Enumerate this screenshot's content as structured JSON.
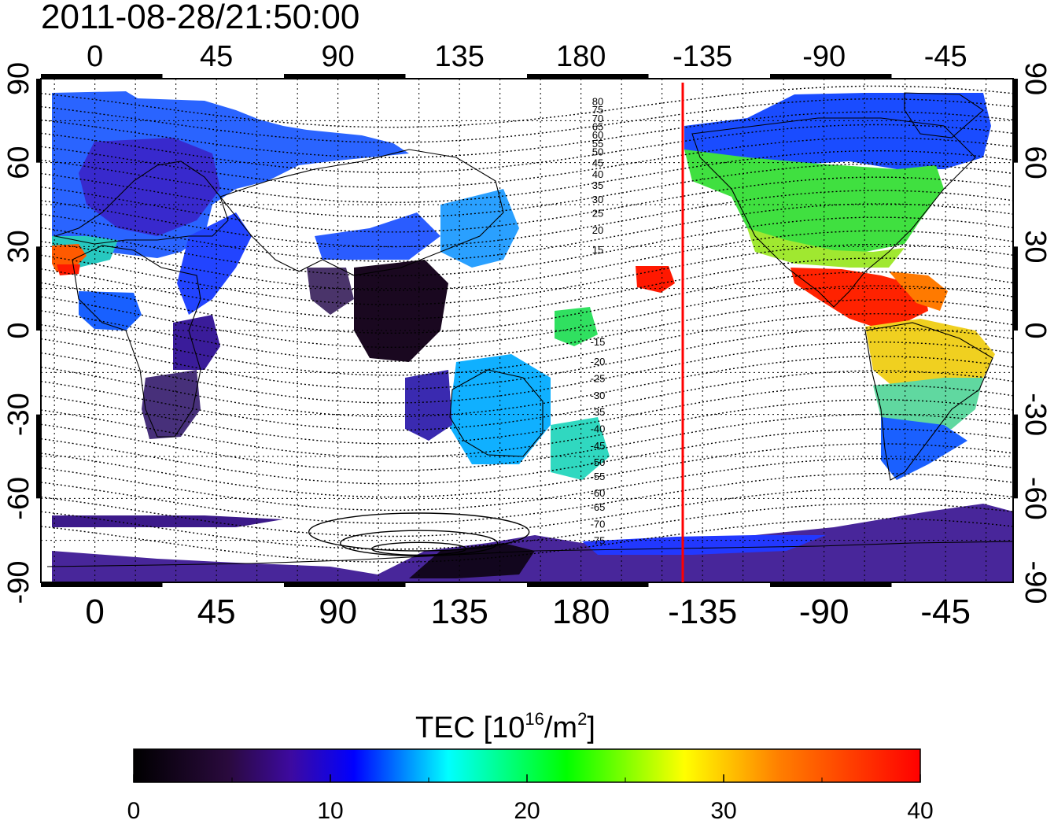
{
  "title": "2011-08-28/21:50:00",
  "map": {
    "lon_ticks_top": [
      "0",
      "45",
      "90",
      "135",
      "180",
      "-135",
      "-90",
      "-45"
    ],
    "lon_ticks_bottom": [
      "0",
      "45",
      "90",
      "135",
      "180",
      "-135",
      "-90",
      "-45"
    ],
    "lat_ticks_left": [
      "90",
      "60",
      "30",
      "0",
      "-30",
      "-60",
      "-90"
    ],
    "lat_ticks_right": [
      "90",
      "60",
      "30",
      "0",
      "-30",
      "-60",
      "-90"
    ],
    "contour_labels": [
      "80",
      "75",
      "70",
      "65",
      "60",
      "55",
      "50",
      "45",
      "40",
      "35",
      "30",
      "25",
      "20",
      "15",
      "-15",
      "-20",
      "-25",
      "-30",
      "-35",
      "-40",
      "-45",
      "-50",
      "-55",
      "-60",
      "-65",
      "-70",
      "-75"
    ],
    "terminator_line_color": "#ff0000",
    "grid": "dotted",
    "lon_range": [
      -20,
      340
    ],
    "lat_range": [
      -90,
      90
    ],
    "terminator_lon": 214
  },
  "colorbar": {
    "label": "TEC  [10",
    "label_sup": "16",
    "label_unit": "/m",
    "label_sup2": "2",
    "label_close": "]",
    "ticks": [
      "0",
      "10",
      "20",
      "30",
      "40"
    ],
    "range": [
      0,
      40
    ],
    "colormap": [
      "#000000",
      "#2a0a3d",
      "#3d0aa0",
      "#0000ff",
      "#00ffff",
      "#00ff00",
      "#ffff00",
      "#ff7f00",
      "#ff0000"
    ]
  },
  "tec_regions": [
    {
      "name": "europe-north-asia",
      "value": 9
    },
    {
      "name": "north-america",
      "value": 23
    },
    {
      "name": "central-america",
      "value": 39
    },
    {
      "name": "south-america",
      "value": 27
    },
    {
      "name": "australia",
      "value": 16
    },
    {
      "name": "southeast-asia",
      "value": 2
    },
    {
      "name": "africa",
      "value": 5
    },
    {
      "name": "antarctica",
      "value": 5
    },
    {
      "name": "pacific-patch",
      "value": 39
    }
  ]
}
